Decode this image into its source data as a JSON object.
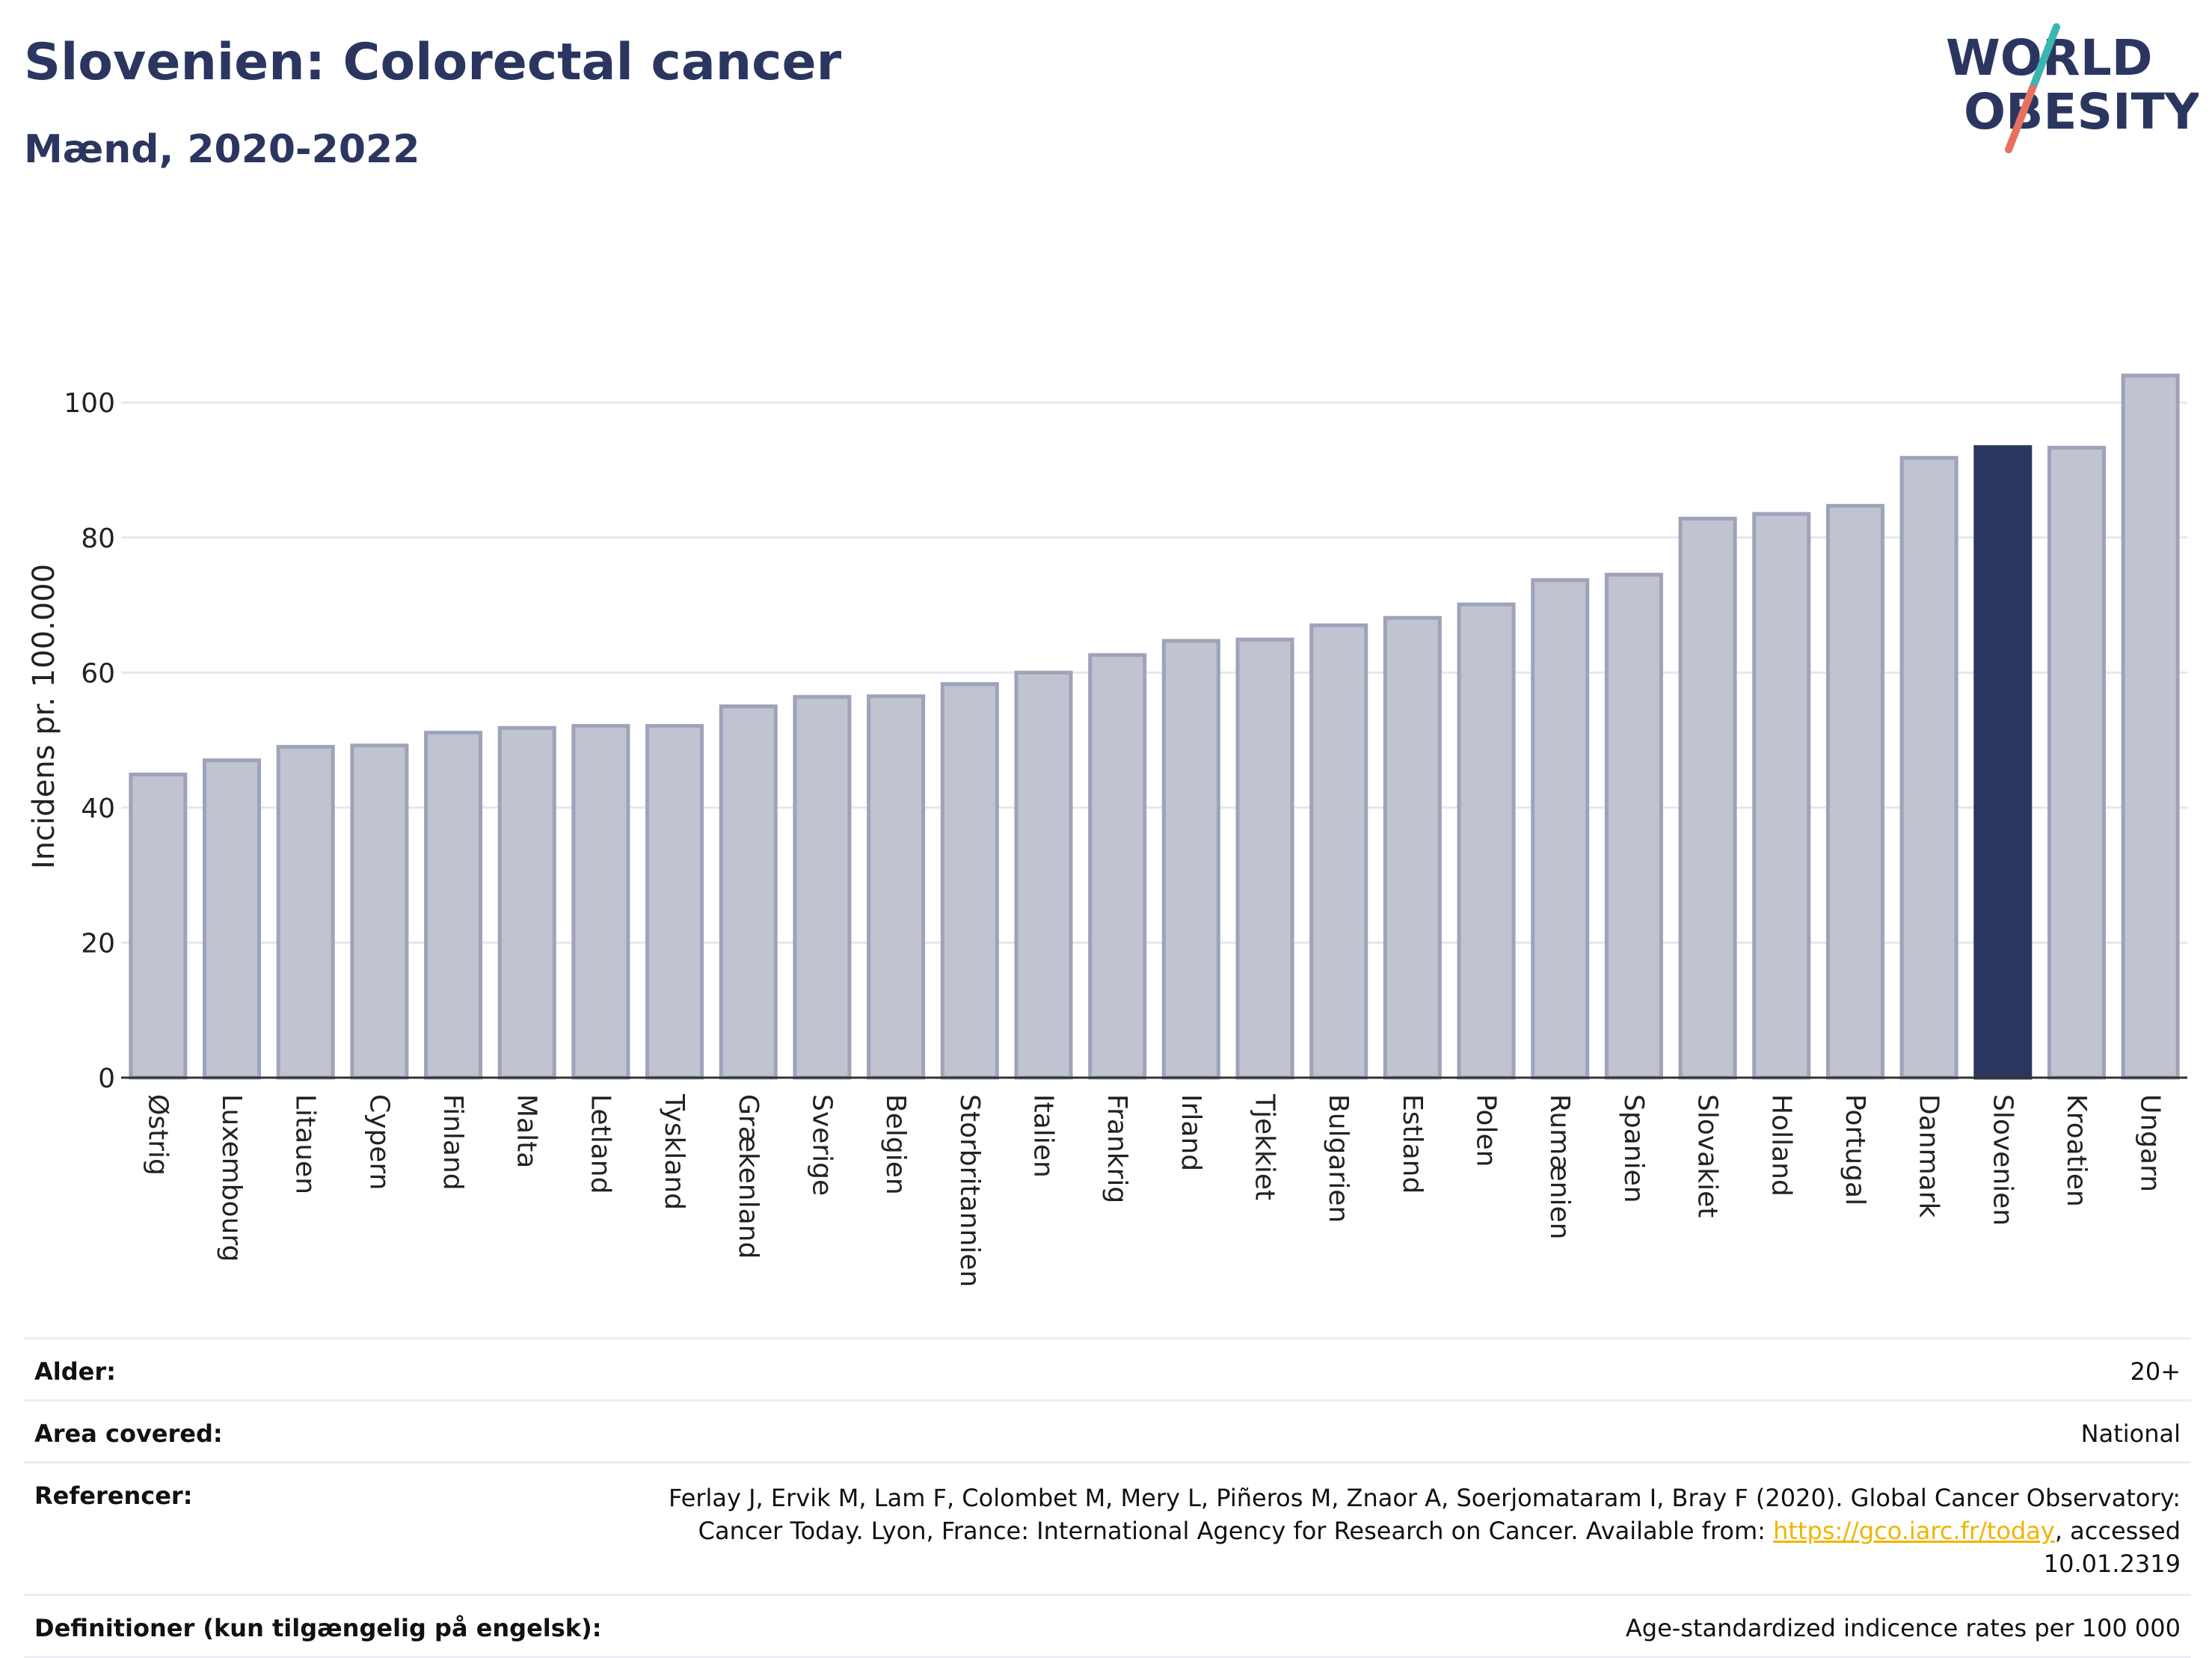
{
  "header": {
    "title": "Slovenien: Colorectal cancer",
    "subtitle": "Mænd, 2020-2022",
    "logo_line1": "WORLD",
    "logo_line2": "OBESITY"
  },
  "colors": {
    "bar": "#c0c3d0",
    "bar_stroke": "#9ea3b9",
    "highlight": "#2b3660",
    "grid": "#e6e7ee",
    "text": "#2b3660"
  },
  "chart_data": {
    "type": "bar",
    "ylabel": "Incidens pr. 100.000",
    "xlabel": "",
    "ylim": [
      0,
      107
    ],
    "yticks": [
      0,
      20,
      40,
      60,
      80,
      100
    ],
    "grid": true,
    "highlight": "Slovenien",
    "categories": [
      "Østrig",
      "Luxembourg",
      "Litauen",
      "Cypern",
      "Finland",
      "Malta",
      "Letland",
      "Tyskland",
      "Grækenland",
      "Sverige",
      "Belgien",
      "Storbritannien",
      "Italien",
      "Frankrig",
      "Irland",
      "Tjekkiet",
      "Bulgarien",
      "Estland",
      "Polen",
      "Rumænien",
      "Spanien",
      "Slovakiet",
      "Holland",
      "Portugal",
      "Danmark",
      "Slovenien",
      "Kroatien",
      "Ungarn"
    ],
    "values": [
      44.9,
      47.0,
      49.0,
      49.2,
      51.1,
      51.8,
      52.1,
      52.1,
      55.0,
      56.4,
      56.5,
      58.3,
      60.0,
      62.6,
      64.7,
      64.9,
      67.0,
      68.1,
      70.1,
      73.7,
      74.5,
      82.8,
      83.5,
      84.7,
      91.8,
      93.4,
      93.3,
      104.0
    ]
  },
  "info": {
    "age_label": "Alder:",
    "age_value": "20+",
    "area_label": "Area covered:",
    "area_value": "National",
    "ref_label": "Referencer:",
    "ref_text_1": "Ferlay J, Ervik M, Lam F, Colombet M, Mery L, Piñeros M, Znaor A, Soerjomataram I, Bray F (2020). Global Cancer Observatory: Cancer Today. Lyon, France: International Agency for Research on Cancer. Available from: ",
    "ref_link": "https://gco.iarc.fr/today",
    "ref_text_2": ", accessed 10.01.2319",
    "def_label": "Definitioner (kun tilgængelig på engelsk):",
    "def_value": "Age-standardized indicence rates per 100 000"
  }
}
